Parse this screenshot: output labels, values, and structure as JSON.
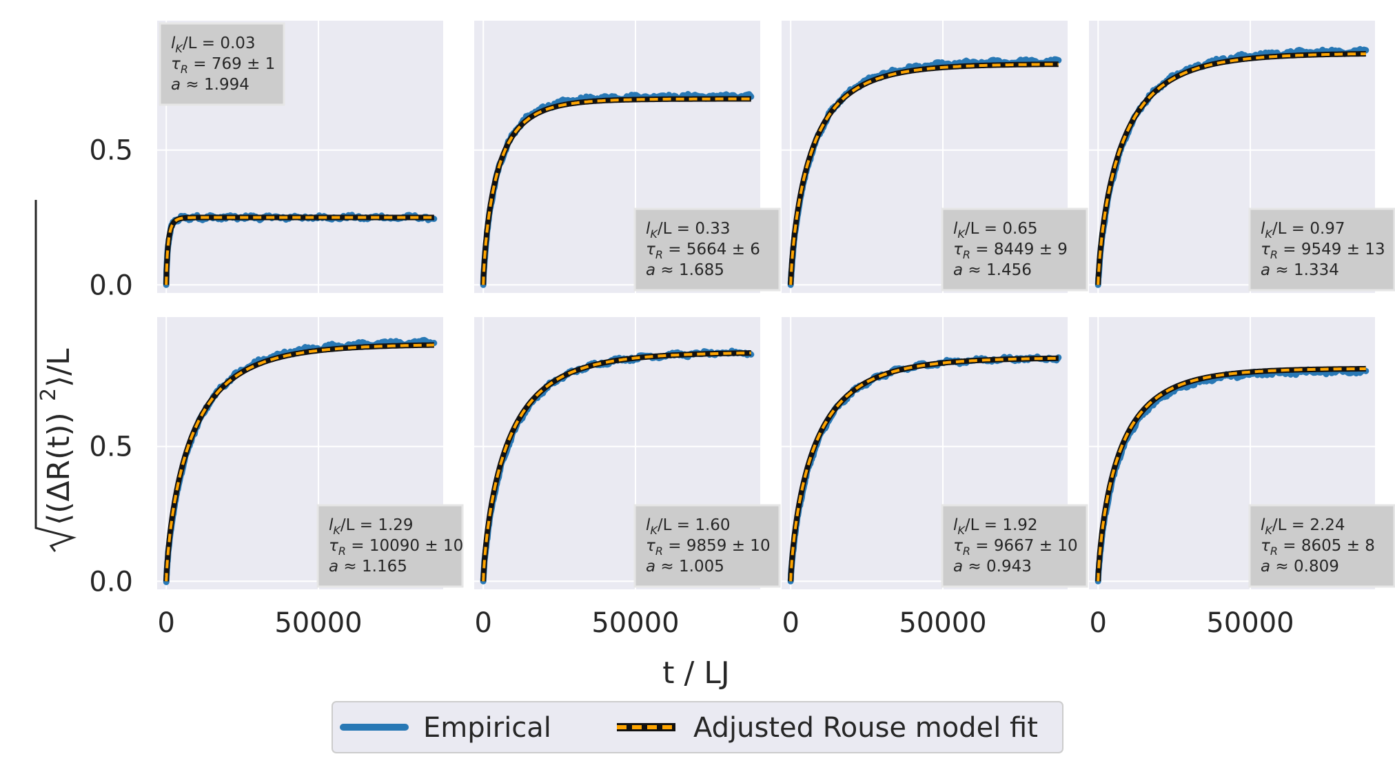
{
  "chart_data": {
    "type": "line",
    "layout": "grid 2x4, shared x and y axes",
    "xlabel": "t / LJ",
    "ylabel_latex": "sqrt(<(ΔR(t))^2>)/L",
    "xticks": [
      "0",
      "50000"
    ],
    "yticks": [
      "0.0",
      "0.5"
    ],
    "xlim": [
      -3000,
      91000
    ],
    "ylim": [
      -0.03,
      0.98
    ],
    "x_max": 88000,
    "grid": true,
    "legend": {
      "placement": "bottom-center",
      "entries": [
        "Empirical",
        "Adjusted Rouse model fit"
      ]
    },
    "colors": {
      "empirical": "#2878b5",
      "band": "#a6c8e6",
      "fit_outer": "#111111",
      "fit_inner": "#ffa500",
      "panel_bg": "#eaeaf2",
      "ann_box": "#cccccc"
    },
    "panels": [
      {
        "ann": [
          "lK/L = 0.03",
          "τR = 769 ± 1",
          "a ≈ 1.994"
        ],
        "ann_parts": [
          [
            "l",
            "K",
            "/L = 0.03"
          ],
          [
            "τ",
            "R",
            " = 769 ± 1"
          ],
          [
            "a",
            " ≈ 1.994"
          ]
        ],
        "ann_pos": "top-left",
        "plateau": 0.25,
        "tau": 769,
        "empirical_plateau": 0.25
      },
      {
        "ann": [
          "lK/L = 0.33",
          "τR = 5664 ± 6",
          "a ≈ 1.685"
        ],
        "ann_parts": [
          [
            "l",
            "K",
            "/L = 0.33"
          ],
          [
            "τ",
            "R",
            " = 5664 ± 6"
          ],
          [
            "a",
            " ≈ 1.685"
          ]
        ],
        "ann_pos": "bottom-right",
        "plateau": 0.69,
        "tau": 5664,
        "empirical_plateau": 0.7
      },
      {
        "ann": [
          "lK/L = 0.65",
          "τR = 8449 ± 9",
          "a ≈ 1.456"
        ],
        "ann_parts": [
          [
            "l",
            "K",
            "/L = 0.65"
          ],
          [
            "τ",
            "R",
            " = 8449 ± 9"
          ],
          [
            "a",
            " ≈ 1.456"
          ]
        ],
        "ann_pos": "bottom-right",
        "plateau": 0.82,
        "tau": 8449,
        "empirical_plateau": 0.83
      },
      {
        "ann": [
          "lK/L = 0.97",
          "τR = 9549 ± 13",
          "a ≈ 1.334"
        ],
        "ann_parts": [
          [
            "l",
            "K",
            "/L = 0.97"
          ],
          [
            "τ",
            "R",
            " = 9549 ± 13"
          ],
          [
            "a",
            " ≈ 1.334"
          ]
        ],
        "ann_pos": "bottom-right",
        "plateau": 0.86,
        "tau": 9549,
        "empirical_plateau": 0.87
      },
      {
        "ann": [
          "lK/L = 1.29",
          "τR = 10090 ± 10",
          "a ≈ 1.165"
        ],
        "ann_parts": [
          [
            "l",
            "K",
            "/L = 1.29"
          ],
          [
            "τ",
            "R",
            " = 10090 ± 10"
          ],
          [
            "a",
            " ≈ 1.165"
          ]
        ],
        "ann_pos": "bottom-right",
        "plateau": 0.88,
        "tau": 10090,
        "empirical_plateau": 0.89
      },
      {
        "ann": [
          "lK/L = 1.60",
          "τR = 9859 ± 10",
          "a ≈ 1.005"
        ],
        "ann_parts": [
          [
            "l",
            "K",
            "/L = 1.60"
          ],
          [
            "τ",
            "R",
            " = 9859 ± 10"
          ],
          [
            "a",
            " ≈ 1.005"
          ]
        ],
        "ann_pos": "bottom-right",
        "plateau": 0.85,
        "tau": 9859,
        "empirical_plateau": 0.85
      },
      {
        "ann": [
          "lK/L = 1.92",
          "τR = 9667 ± 10",
          "a ≈ 0.943"
        ],
        "ann_parts": [
          [
            "l",
            "K",
            "/L = 1.92"
          ],
          [
            "τ",
            "R",
            " = 9667 ± 10"
          ],
          [
            "a",
            " ≈ 0.943"
          ]
        ],
        "ann_pos": "bottom-right",
        "plateau": 0.83,
        "tau": 9667,
        "empirical_plateau": 0.83
      },
      {
        "ann": [
          "lK/L = 2.24",
          "τR = 8605 ± 8",
          "a ≈ 0.809"
        ],
        "ann_parts": [
          [
            "l",
            "K",
            "/L = 2.24"
          ],
          [
            "τ",
            "R",
            " = 8605 ± 8"
          ],
          [
            "a",
            " ≈ 0.809"
          ]
        ],
        "ann_pos": "bottom-right",
        "plateau": 0.79,
        "tau": 8605,
        "empirical_plateau": 0.78
      }
    ]
  }
}
